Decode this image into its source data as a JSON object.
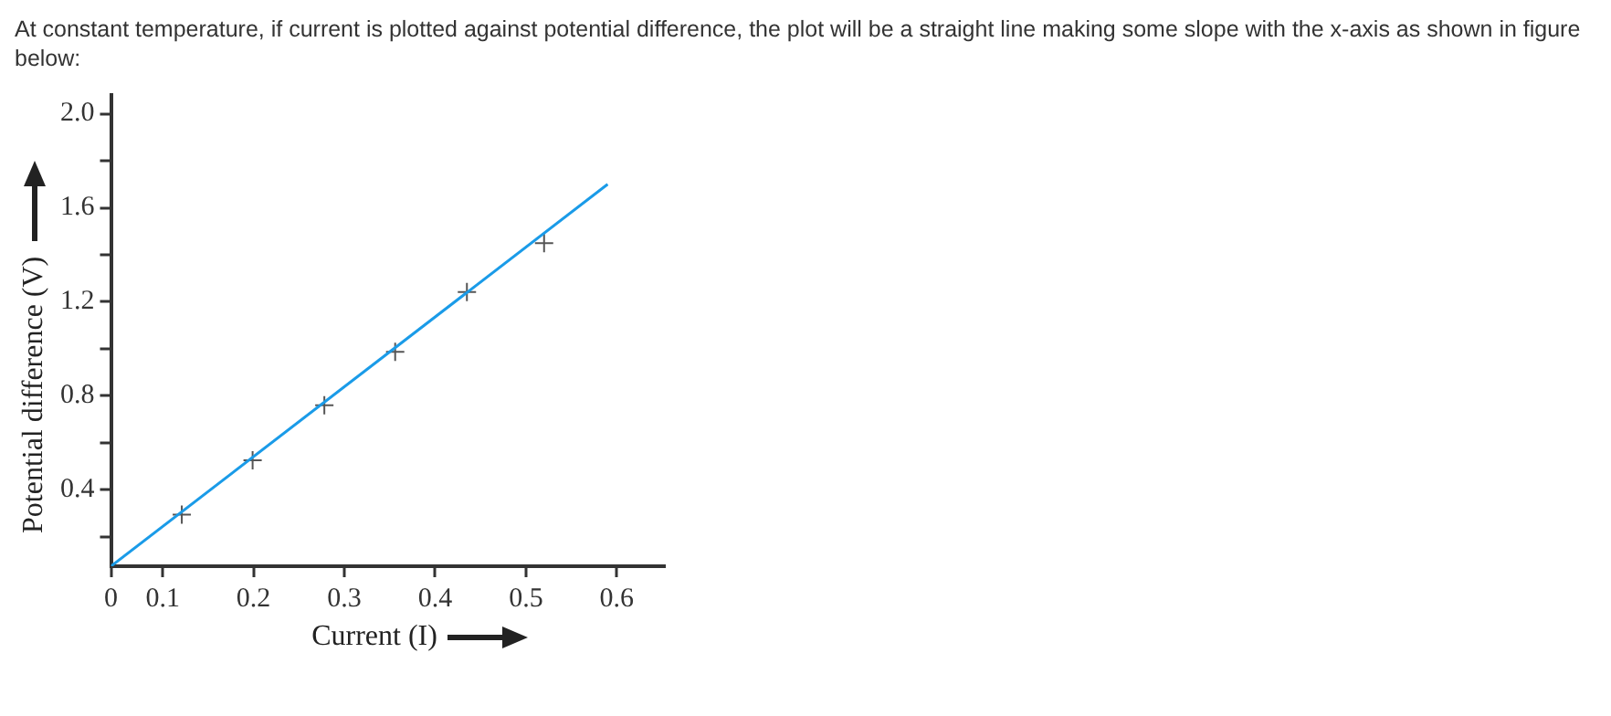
{
  "chart_data": {
    "type": "scatter",
    "title": "At constant temperature, if current is plotted against potential difference, the plot will be a straight line making some slope with the x-axis as shown in figure below:",
    "xlabel": "Current (I)",
    "ylabel": "Potential difference (V)",
    "series": [
      {
        "type": "line",
        "color": "#1a9be8",
        "x": [
          0.043,
          0.59
        ],
        "values": [
          0.075,
          1.7
        ]
      },
      {
        "type": "scatter",
        "color": "#555555",
        "marker": "cross",
        "x": [
          0.121,
          0.199,
          0.278,
          0.356,
          0.435,
          0.52
        ],
        "values": [
          0.295,
          0.526,
          0.76,
          0.987,
          1.242,
          1.45
        ]
      }
    ],
    "xlim": [
      0.043,
      0.653
    ],
    "ylim": [
      0.075,
      2.08
    ],
    "xticks": [
      {
        "value": 0.043,
        "label": "0"
      },
      0.1,
      0.2,
      0.3,
      0.4,
      0.5,
      0.6
    ],
    "yticks": [
      {
        "value": 0.2,
        "label": null
      },
      0.4,
      {
        "value": 0.6,
        "label": null
      },
      0.8,
      {
        "value": 1.0,
        "label": null
      },
      1.2,
      {
        "value": 1.4,
        "label": null
      },
      1.6,
      {
        "value": 1.8,
        "label": null
      },
      {
        "value": 2.0,
        "label": "2.0"
      }
    ]
  }
}
